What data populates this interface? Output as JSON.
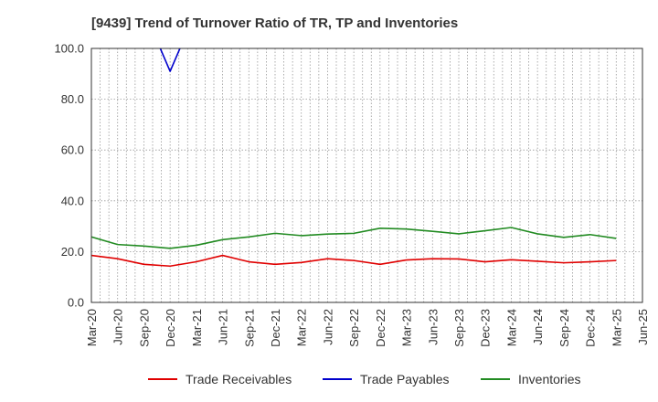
{
  "chart_data": {
    "type": "line",
    "title": "[9439]  Trend of Turnover Ratio of TR, TP and Inventories",
    "xlabel": "",
    "ylabel": "",
    "ylim": [
      0,
      100
    ],
    "y_ticks": [
      "0.0",
      "20.0",
      "40.0",
      "60.0",
      "80.0",
      "100.0"
    ],
    "x_tick_labels": [
      "Mar-20",
      "Jun-20",
      "Sep-20",
      "Dec-20",
      "Mar-21",
      "Jun-21",
      "Sep-21",
      "Dec-21",
      "Mar-22",
      "Jun-22",
      "Sep-22",
      "Dec-22",
      "Mar-23",
      "Jun-23",
      "Sep-23",
      "Dec-23",
      "Mar-24",
      "Jun-24",
      "Sep-24",
      "Dec-24",
      "Mar-25",
      "Jun-25"
    ],
    "grid": true,
    "legend_position": "bottom",
    "series": [
      {
        "name": "Trade Receivables",
        "color": "#e00000",
        "x": [
          "Mar-20",
          "Jun-20",
          "Sep-20",
          "Dec-20",
          "Mar-21",
          "Jun-21",
          "Sep-21",
          "Dec-21",
          "Mar-22",
          "Jun-22",
          "Sep-22",
          "Dec-22",
          "Mar-23",
          "Jun-23",
          "Sep-23",
          "Dec-23",
          "Mar-24",
          "Jun-24",
          "Sep-24",
          "Dec-24",
          "Mar-25"
        ],
        "values": [
          18.5,
          17.2,
          15.0,
          14.3,
          16.0,
          18.5,
          16.0,
          15.0,
          15.7,
          17.2,
          16.5,
          15.0,
          16.7,
          17.2,
          17.1,
          16.0,
          16.8,
          16.2,
          15.6,
          16.0,
          16.5
        ]
      },
      {
        "name": "Trade Payables",
        "color": "#0000cc",
        "x": [
          "Sep-20",
          "Dec-20",
          "Mar-21"
        ],
        "values": [
          115.0,
          91.0,
          115.0
        ]
      },
      {
        "name": "Inventories",
        "color": "#228b22",
        "x": [
          "Mar-20",
          "Jun-20",
          "Sep-20",
          "Dec-20",
          "Mar-21",
          "Jun-21",
          "Sep-21",
          "Dec-21",
          "Mar-22",
          "Jun-22",
          "Sep-22",
          "Dec-22",
          "Mar-23",
          "Jun-23",
          "Sep-23",
          "Dec-23",
          "Mar-24",
          "Jun-24",
          "Sep-24",
          "Dec-24",
          "Mar-25"
        ],
        "values": [
          25.8,
          22.8,
          22.2,
          21.3,
          22.5,
          24.7,
          25.8,
          27.2,
          26.3,
          26.9,
          27.2,
          29.2,
          28.9,
          28.0,
          27.0,
          28.2,
          29.5,
          27.0,
          25.6,
          26.7,
          25.2
        ]
      }
    ]
  }
}
